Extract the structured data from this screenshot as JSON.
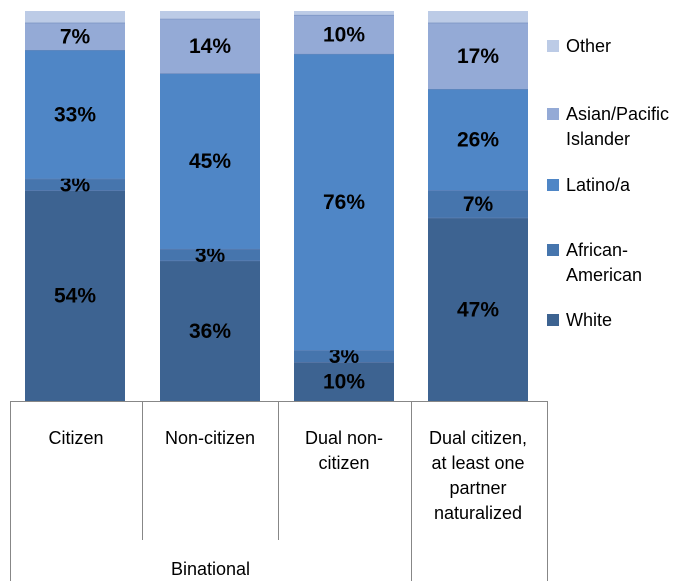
{
  "chart_data": {
    "type": "bar",
    "stacked": true,
    "normalized_percent": true,
    "categories": [
      "Citizen",
      "Non-citizen",
      "Dual non-citizen",
      "Dual citizen, at least one partner naturalized"
    ],
    "category_label_lines": [
      [
        "Citizen"
      ],
      [
        "Non-citizen"
      ],
      [
        "Dual non-",
        "citizen"
      ],
      [
        "Dual citizen,",
        "at least one",
        "partner",
        "naturalized"
      ]
    ],
    "group_label": "Binational",
    "series": [
      {
        "name": "White",
        "values": [
          54,
          36,
          10,
          47
        ],
        "labels": [
          "54%",
          "36%",
          "10%",
          "47%"
        ],
        "color": "#3d6391"
      },
      {
        "name": "African-American",
        "values": [
          3,
          3,
          3,
          7
        ],
        "labels": [
          "3%",
          "3%",
          "3%",
          "7%"
        ],
        "color": "#4675ad"
      },
      {
        "name": "Latino/a",
        "values": [
          33,
          45,
          76,
          26
        ],
        "labels": [
          "33%",
          "45%",
          "76%",
          "26%"
        ],
        "color": "#4f86c6"
      },
      {
        "name": "Asian/Pacific Islander",
        "values": [
          7,
          14,
          10,
          17
        ],
        "labels": [
          "7%",
          "14%",
          "10%",
          "17%"
        ],
        "color": "#94aad6"
      },
      {
        "name": "Other",
        "values": [
          3,
          2,
          1,
          3
        ],
        "labels": [
          "",
          "",
          "",
          ""
        ],
        "color": "#bccbe6"
      }
    ],
    "legend": {
      "position": "right",
      "items": [
        {
          "series": "Other",
          "lines": [
            "Other"
          ]
        },
        {
          "series": "Asian/Pacific Islander",
          "lines": [
            "Asian/Pacific",
            "Islander"
          ]
        },
        {
          "series": "Latino/a",
          "lines": [
            "Latino/a"
          ]
        },
        {
          "series": "African-American",
          "lines": [
            "African-",
            "American"
          ]
        },
        {
          "series": "White",
          "lines": [
            "White"
          ]
        }
      ]
    },
    "grid": false,
    "ylim": [
      0,
      100
    ]
  }
}
